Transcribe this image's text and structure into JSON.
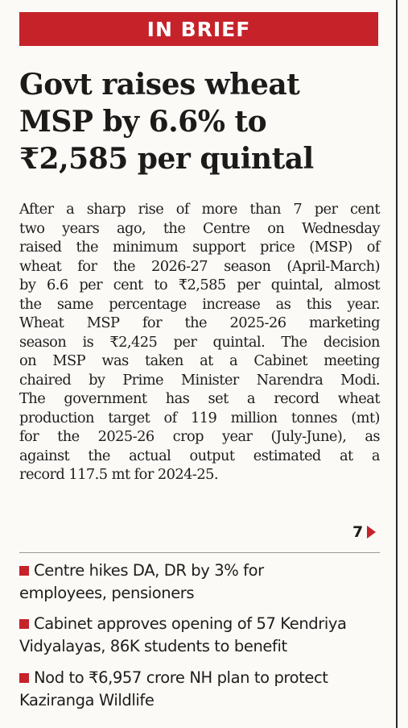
{
  "banner": {
    "label": "IN BRIEF"
  },
  "headline": {
    "lines": [
      "Govt raises wheat",
      "MSP by 6.6% to",
      "₹2,585 per quintal"
    ]
  },
  "article": {
    "lines": [
      "After a sharp rise of more than 7 per cent",
      "two years ago, the Centre on Wednesday",
      "raised the minimum support price (MSP) of",
      "wheat for the 2026-27 season (April-March)",
      "by 6.6 per cent to ₹2,585 per quintal, almost",
      "the same percentage increase as this year.",
      "Wheat MSP for the 2025-26 marketing",
      "season is ₹2,425 per quintal. The decision",
      "on MSP was taken at a Cabinet meeting",
      "chaired by Prime Minister Narendra Modi.",
      "The government has set a record wheat",
      "production target of 119 million tonnes (mt)",
      "for the 2025-26 crop year (July-June), as",
      "against the actual output estimated at a",
      "record 117.5 mt for 2024-25."
    ],
    "continued_page": "7"
  },
  "briefs": [
    {
      "line1": "Centre hikes DA, DR by 3% for",
      "line2": "employees, pensioners"
    },
    {
      "line1": "Cabinet approves opening of 57 Kendriya",
      "line2": "Vidyalayas, 86K students to benefit"
    },
    {
      "line1": "Nod to ₹6,957 crore NH plan to protect",
      "line2": "Kaziranga Wildlife"
    }
  ],
  "colors": {
    "accent": "#c6222a",
    "text": "#1f1d1c",
    "background": "#fbfaf7"
  },
  "icons": {
    "bullet": "red-square-bullet-icon",
    "continue": "red-triangle-arrow-icon"
  }
}
